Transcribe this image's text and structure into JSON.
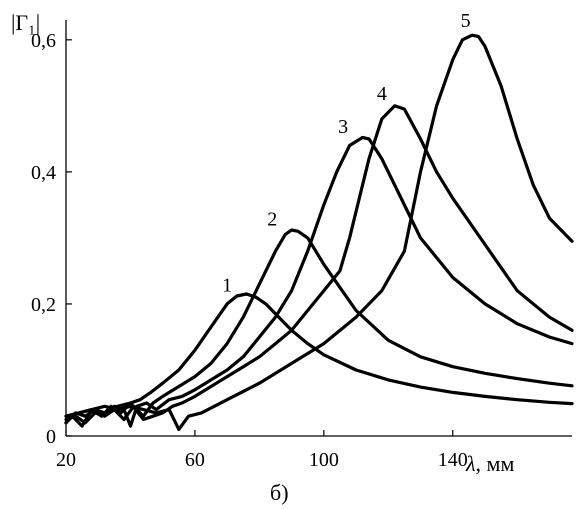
{
  "chart_data": {
    "type": "line",
    "title": "",
    "ylabel": "|Г₁|",
    "xlabel_symbol": "λ",
    "xlabel_unit": ", мм",
    "caption": "б)",
    "xlim": [
      20,
      177
    ],
    "ylim": [
      0,
      0.63
    ],
    "x_ticks": [
      20,
      60,
      100,
      140
    ],
    "x_tick_labels": [
      "20",
      "60",
      "100",
      "140"
    ],
    "y_ticks": [
      0,
      0.2,
      0.4,
      0.6
    ],
    "y_tick_labels": [
      "0",
      "0,2",
      "0,4",
      "0,6"
    ],
    "grid": false,
    "series": [
      {
        "name": "1",
        "label_at": [
          70,
          0.21
        ],
        "x": [
          20,
          22,
          25,
          28,
          31,
          34,
          37,
          40,
          43,
          46,
          50,
          55,
          60,
          65,
          70,
          73,
          76,
          79,
          82,
          86,
          90,
          95,
          100,
          110,
          120,
          130,
          140,
          150,
          160,
          170,
          177
        ],
        "y": [
          0.02,
          0.03,
          0.015,
          0.04,
          0.03,
          0.045,
          0.035,
          0.05,
          0.055,
          0.065,
          0.08,
          0.1,
          0.13,
          0.165,
          0.2,
          0.212,
          0.215,
          0.21,
          0.2,
          0.18,
          0.16,
          0.14,
          0.123,
          0.1,
          0.085,
          0.074,
          0.066,
          0.06,
          0.055,
          0.051,
          0.049
        ]
      },
      {
        "name": "2",
        "label_at": [
          84,
          0.31
        ],
        "x": [
          20,
          23,
          26,
          29,
          32,
          35,
          38,
          41,
          44,
          47,
          50,
          55,
          60,
          65,
          70,
          75,
          80,
          85,
          88,
          90,
          92,
          95,
          100,
          105,
          110,
          120,
          130,
          140,
          150,
          160,
          170,
          177
        ],
        "y": [
          0.025,
          0.03,
          0.02,
          0.035,
          0.03,
          0.04,
          0.025,
          0.045,
          0.03,
          0.05,
          0.06,
          0.075,
          0.09,
          0.11,
          0.14,
          0.18,
          0.23,
          0.28,
          0.305,
          0.312,
          0.31,
          0.3,
          0.26,
          0.225,
          0.19,
          0.145,
          0.12,
          0.105,
          0.095,
          0.087,
          0.08,
          0.076
        ]
      },
      {
        "name": "3",
        "label_at": [
          106,
          0.45
        ],
        "x": [
          20,
          23,
          26,
          29,
          32,
          35,
          38,
          40,
          42,
          45,
          48,
          52,
          56,
          60,
          65,
          70,
          75,
          80,
          85,
          90,
          95,
          100,
          104,
          108,
          112,
          114,
          118,
          122,
          126,
          130,
          140,
          150,
          160,
          170,
          177
        ],
        "y": [
          0.02,
          0.035,
          0.03,
          0.04,
          0.035,
          0.045,
          0.04,
          0.015,
          0.045,
          0.05,
          0.04,
          0.055,
          0.06,
          0.07,
          0.085,
          0.1,
          0.12,
          0.15,
          0.18,
          0.22,
          0.28,
          0.35,
          0.4,
          0.44,
          0.452,
          0.45,
          0.42,
          0.38,
          0.34,
          0.3,
          0.24,
          0.2,
          0.17,
          0.15,
          0.14
        ]
      },
      {
        "name": "4",
        "label_at": [
          118,
          0.5
        ],
        "x": [
          20,
          24,
          28,
          32,
          36,
          40,
          44,
          47,
          50,
          53,
          56,
          60,
          65,
          70,
          75,
          80,
          85,
          90,
          95,
          100,
          105,
          108,
          111,
          114,
          118,
          122,
          125,
          130,
          135,
          140,
          150,
          160,
          170,
          177
        ],
        "y": [
          0.03,
          0.035,
          0.04,
          0.035,
          0.045,
          0.05,
          0.025,
          0.03,
          0.035,
          0.045,
          0.05,
          0.06,
          0.075,
          0.09,
          0.105,
          0.12,
          0.14,
          0.16,
          0.19,
          0.22,
          0.25,
          0.3,
          0.36,
          0.42,
          0.48,
          0.5,
          0.495,
          0.45,
          0.4,
          0.36,
          0.29,
          0.22,
          0.18,
          0.16
        ]
      },
      {
        "name": "5",
        "label_at": [
          144,
          0.61
        ],
        "x": [
          20,
          24,
          28,
          32,
          36,
          40,
          44,
          48,
          52,
          54,
          55,
          58,
          62,
          66,
          70,
          80,
          90,
          100,
          110,
          118,
          125,
          130,
          135,
          140,
          143,
          146,
          148,
          150,
          155,
          160,
          165,
          170,
          177
        ],
        "y": [
          0.03,
          0.035,
          0.04,
          0.045,
          0.04,
          0.045,
          0.04,
          0.035,
          0.04,
          0.02,
          0.01,
          0.03,
          0.035,
          0.045,
          0.055,
          0.08,
          0.11,
          0.14,
          0.18,
          0.22,
          0.28,
          0.4,
          0.5,
          0.57,
          0.6,
          0.607,
          0.605,
          0.59,
          0.53,
          0.45,
          0.38,
          0.33,
          0.295
        ]
      }
    ]
  }
}
